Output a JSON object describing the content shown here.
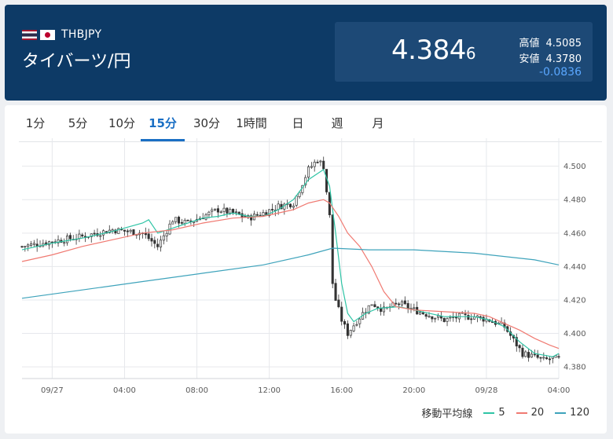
{
  "header": {
    "pair_code": "THBJPY",
    "pair_name": "タイバーツ/円",
    "price_main": "4.384",
    "price_small": "6",
    "high_label": "高値",
    "high_value": "4.5085",
    "low_label": "安値",
    "low_value": "4.3780",
    "change": "-0.0836"
  },
  "tabs": [
    {
      "label": "1分"
    },
    {
      "label": "5分"
    },
    {
      "label": "10分"
    },
    {
      "label": "15分",
      "active": true
    },
    {
      "label": "30分"
    },
    {
      "label": "1時間"
    },
    {
      "label": "日"
    },
    {
      "label": "週"
    },
    {
      "label": "月"
    }
  ],
  "legend": {
    "title": "移動平均線",
    "items": [
      {
        "label": "5",
        "color": "#2ec4a5"
      },
      {
        "label": "20",
        "color": "#f07a72"
      },
      {
        "label": "120",
        "color": "#3ea3bb"
      }
    ]
  },
  "chart_data": {
    "type": "candlestick",
    "interval": "15分",
    "x_range": [
      "09/26 21:30",
      "09/28 04:00"
    ],
    "x_ticks": [
      "09/27",
      "04:00",
      "08:00",
      "12:00",
      "16:00",
      "20:00",
      "09/28",
      "04:00"
    ],
    "y_ticks": [
      "4.500",
      "4.480",
      "4.460",
      "4.440",
      "4.420",
      "4.400",
      "4.380"
    ],
    "ylim": [
      4.373,
      4.513
    ],
    "y_tick_values": [
      4.5,
      4.48,
      4.46,
      4.44,
      4.42,
      4.4,
      4.38
    ],
    "grid": true,
    "candle_colors": {
      "up": "#ffffff",
      "down": "#333333",
      "wick": "#333333"
    },
    "close_path": [
      [
        0,
        4.452
      ],
      [
        10,
        4.455
      ],
      [
        20,
        4.458
      ],
      [
        30,
        4.462
      ],
      [
        40,
        4.46
      ],
      [
        45,
        4.452
      ],
      [
        50,
        4.468
      ],
      [
        55,
        4.466
      ],
      [
        60,
        4.47
      ],
      [
        65,
        4.474
      ],
      [
        70,
        4.472
      ],
      [
        75,
        4.469
      ],
      [
        80,
        4.472
      ],
      [
        85,
        4.476
      ],
      [
        90,
        4.478
      ],
      [
        95,
        4.498
      ],
      [
        98,
        4.504
      ],
      [
        100,
        4.5
      ],
      [
        102,
        4.47
      ],
      [
        103,
        4.43
      ],
      [
        104,
        4.42
      ],
      [
        106,
        4.408
      ],
      [
        108,
        4.4
      ],
      [
        110,
        4.405
      ],
      [
        113,
        4.412
      ],
      [
        116,
        4.418
      ],
      [
        120,
        4.414
      ],
      [
        125,
        4.418
      ],
      [
        130,
        4.414
      ],
      [
        135,
        4.411
      ],
      [
        140,
        4.408
      ],
      [
        145,
        4.41
      ],
      [
        150,
        4.41
      ],
      [
        155,
        4.408
      ],
      [
        160,
        4.404
      ],
      [
        163,
        4.396
      ],
      [
        166,
        4.388
      ],
      [
        170,
        4.386
      ],
      [
        173,
        4.384
      ],
      [
        176,
        4.385
      ],
      [
        178,
        4.3846
      ]
    ],
    "ma_series": [
      {
        "name": "5",
        "color": "#2ec4a5",
        "points": [
          [
            0,
            4.45
          ],
          [
            10,
            4.454
          ],
          [
            20,
            4.457
          ],
          [
            30,
            4.461
          ],
          [
            40,
            4.466
          ],
          [
            42,
            4.468
          ],
          [
            45,
            4.46
          ],
          [
            50,
            4.463
          ],
          [
            55,
            4.466
          ],
          [
            60,
            4.469
          ],
          [
            65,
            4.47
          ],
          [
            70,
            4.472
          ],
          [
            75,
            4.47
          ],
          [
            80,
            4.47
          ],
          [
            85,
            4.474
          ],
          [
            90,
            4.48
          ],
          [
            95,
            4.492
          ],
          [
            100,
            4.498
          ],
          [
            102,
            4.488
          ],
          [
            104,
            4.46
          ],
          [
            106,
            4.43
          ],
          [
            108,
            4.412
          ],
          [
            110,
            4.407
          ],
          [
            114,
            4.412
          ],
          [
            118,
            4.415
          ],
          [
            125,
            4.416
          ],
          [
            130,
            4.414
          ],
          [
            140,
            4.41
          ],
          [
            150,
            4.41
          ],
          [
            155,
            4.408
          ],
          [
            160,
            4.404
          ],
          [
            165,
            4.395
          ],
          [
            170,
            4.388
          ],
          [
            176,
            4.386
          ],
          [
            178,
            4.388
          ]
        ]
      },
      {
        "name": "20",
        "color": "#f07a72",
        "points": [
          [
            0,
            4.443
          ],
          [
            10,
            4.447
          ],
          [
            20,
            4.452
          ],
          [
            30,
            4.456
          ],
          [
            40,
            4.46
          ],
          [
            50,
            4.462
          ],
          [
            60,
            4.466
          ],
          [
            70,
            4.469
          ],
          [
            80,
            4.47
          ],
          [
            90,
            4.474
          ],
          [
            95,
            4.478
          ],
          [
            100,
            4.48
          ],
          [
            102,
            4.478
          ],
          [
            105,
            4.47
          ],
          [
            108,
            4.46
          ],
          [
            112,
            4.452
          ],
          [
            116,
            4.44
          ],
          [
            120,
            4.425
          ],
          [
            124,
            4.416
          ],
          [
            130,
            4.414
          ],
          [
            140,
            4.413
          ],
          [
            150,
            4.412
          ],
          [
            155,
            4.41
          ],
          [
            160,
            4.406
          ],
          [
            165,
            4.402
          ],
          [
            170,
            4.397
          ],
          [
            175,
            4.393
          ],
          [
            178,
            4.391
          ]
        ]
      },
      {
        "name": "120",
        "color": "#3ea3bb",
        "points": [
          [
            0,
            4.421
          ],
          [
            20,
            4.426
          ],
          [
            40,
            4.431
          ],
          [
            60,
            4.436
          ],
          [
            80,
            4.441
          ],
          [
            95,
            4.447
          ],
          [
            103,
            4.451
          ],
          [
            115,
            4.45
          ],
          [
            130,
            4.45
          ],
          [
            150,
            4.448
          ],
          [
            170,
            4.444
          ],
          [
            178,
            4.441
          ]
        ]
      }
    ]
  }
}
